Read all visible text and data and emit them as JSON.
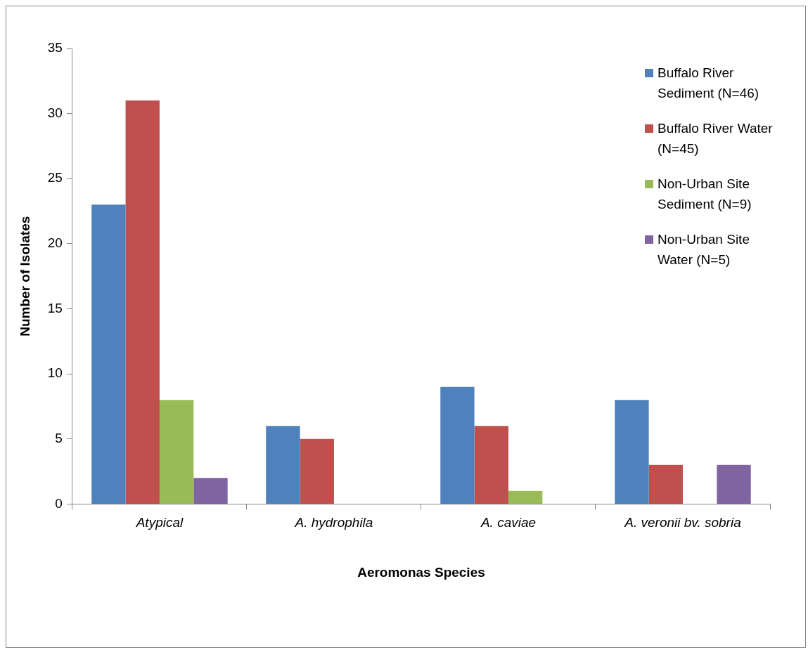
{
  "chart_data": {
    "type": "bar",
    "categories": [
      "Atypical",
      "A. hydrophila",
      "A. caviae",
      "A. veronii bv. sobria"
    ],
    "xlabel": "Aeromonas Species",
    "ylabel": "Number of Isolates",
    "series": [
      {
        "name": "Buffalo River Sediment (N=46)",
        "color": "#4f81bd",
        "values": [
          23,
          6,
          9,
          8
        ]
      },
      {
        "name": "Buffalo River Water (N=45)",
        "color": "#c0504d",
        "values": [
          31,
          5,
          6,
          3
        ]
      },
      {
        "name": "Non-Urban Site Sediment (N=9)",
        "color": "#9bbb59",
        "values": [
          8,
          0,
          1,
          0
        ]
      },
      {
        "name": "Non-Urban Site Water (N=5)",
        "color": "#8064a2",
        "values": [
          2,
          0,
          0,
          3
        ]
      }
    ],
    "ylim": [
      0,
      35
    ],
    "yticks": [
      0,
      5,
      10,
      15,
      20,
      25,
      30,
      35
    ],
    "grid": false,
    "legend": "top right"
  }
}
